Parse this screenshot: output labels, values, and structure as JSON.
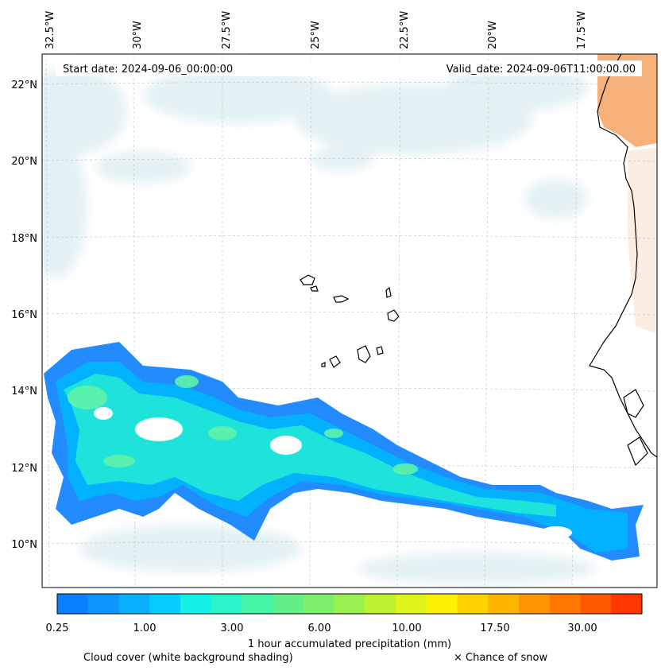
{
  "header": {
    "start_date": "Start date: 2024-09-06_00:00:00",
    "valid_date": "Valid_date: 2024-09-06T11:00:00.00"
  },
  "map": {
    "lon_labels": [
      "32.5°W",
      "30°W",
      "27.5°W",
      "25°W",
      "22.5°W",
      "20°W",
      "17.5°W"
    ],
    "lat_labels": [
      "22°N",
      "20°N",
      "18°N",
      "16°N",
      "14°N",
      "12°N",
      "10°N"
    ],
    "land_color": "#f4a261",
    "precip_colors": [
      "#0a7fff",
      "#00b6ff",
      "#21e8d6",
      "#5ff2a8"
    ],
    "cloud_color": "#cfe6ec"
  },
  "colorbar": {
    "tick_labels": [
      "0.25",
      "1.00",
      "3.00",
      "6.00",
      "10.00",
      "17.50",
      "30.00"
    ],
    "colors": [
      "#0a7fff",
      "#0a95ff",
      "#09b0ff",
      "#06cdff",
      "#14f2e8",
      "#2af5c8",
      "#45f5a8",
      "#62f08a",
      "#7def6c",
      "#9bef4f",
      "#bdf232",
      "#e0f51a",
      "#fff200",
      "#ffd300",
      "#ffb400",
      "#ff9500",
      "#ff7600",
      "#ff5600",
      "#ff3600"
    ],
    "label": "1 hour accumulated precipitation (mm)"
  },
  "legend": {
    "cloud_note": "Cloud cover (white background shading)",
    "snow_note": "× Chance of snow"
  }
}
